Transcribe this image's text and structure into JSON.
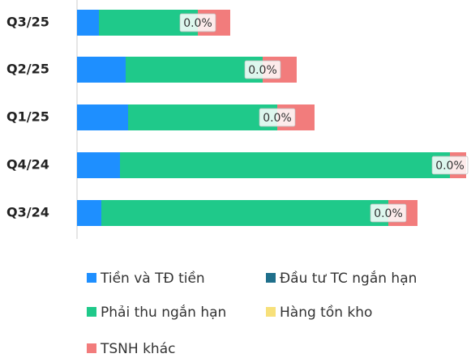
{
  "chart_data": {
    "type": "stacked-bar-horizontal",
    "categories": [
      "Q3/25",
      "Q2/25",
      "Q1/25",
      "Q4/24",
      "Q3/24"
    ],
    "series": [
      {
        "name": "Tiền và TĐ tiền",
        "color": "#1e8fff",
        "values": [
          27,
          60,
          63,
          53,
          30
        ]
      },
      {
        "name": "Đầu tư TC ngắn hạn",
        "color": "#1f6f8b",
        "values": [
          0,
          0,
          0,
          0,
          0
        ]
      },
      {
        "name": "Phải thu ngắn hạn",
        "color": "#1fc98a",
        "values": [
          122,
          169,
          184,
          407,
          354
        ]
      },
      {
        "name": "Hàng tồn kho",
        "color": "#f7e07a",
        "values": [
          0,
          0,
          0,
          0,
          0
        ],
        "value_labels": [
          "0.0%",
          "0.0%",
          "0.0%",
          "0.0%",
          "0.0%"
        ]
      },
      {
        "name": "TSNH khác",
        "color": "#f27c7c",
        "values": [
          40,
          42,
          46,
          20,
          36
        ]
      }
    ],
    "xlim": [
      0,
      480
    ]
  }
}
